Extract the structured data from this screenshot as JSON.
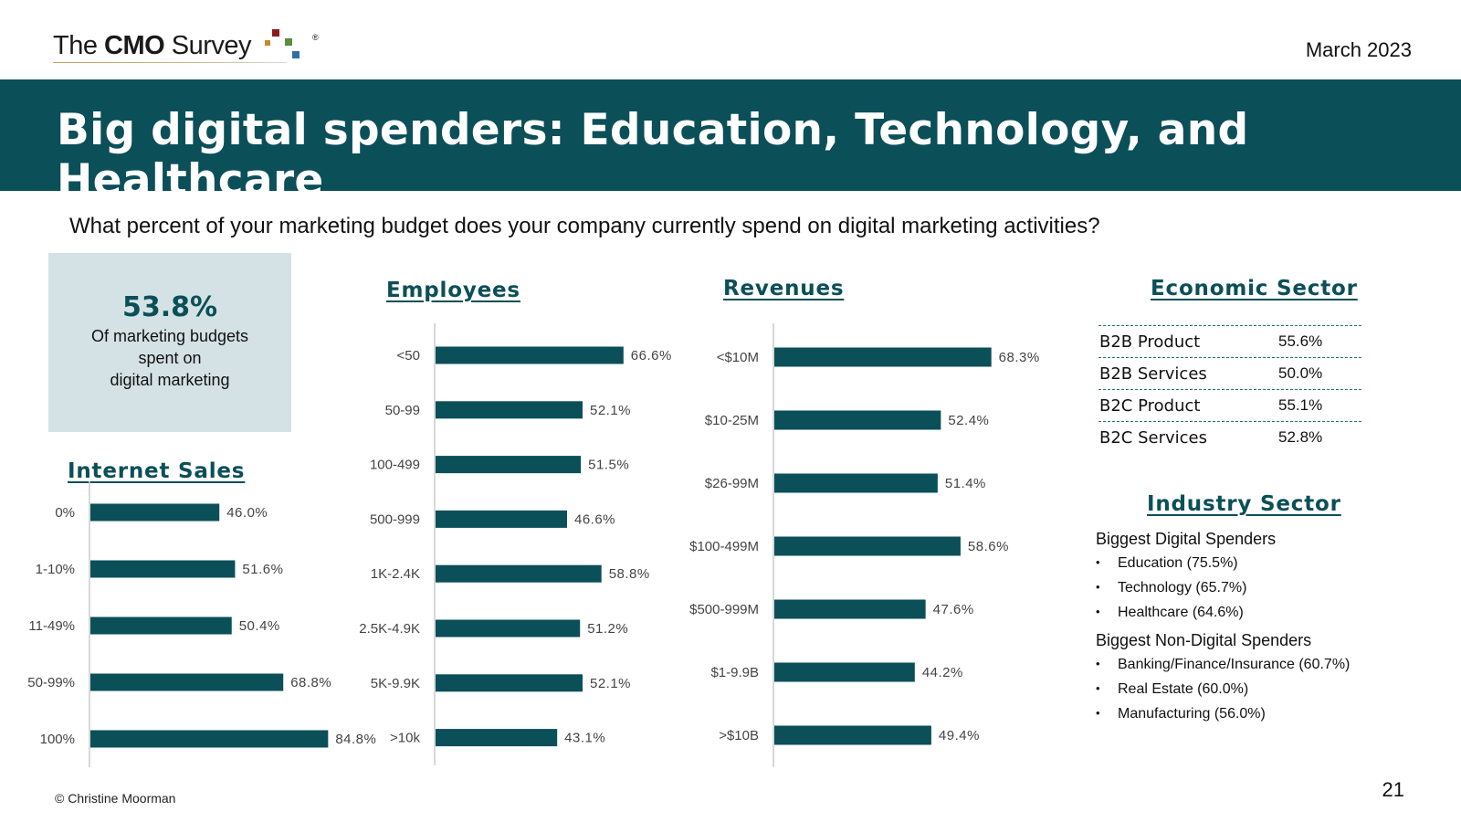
{
  "logo": {
    "text_light": "The ",
    "text_bold": "CMO",
    "text_light2": " Survey",
    "reg": "®"
  },
  "date": "March 2023",
  "title": "Big digital spenders: Education, Technology, and Healthcare",
  "question": "What percent of your marketing budget does your company currently spend on digital marketing activities?",
  "stat": {
    "value": "53.8%",
    "label_lines": [
      "Of marketing budgets",
      "spent on",
      "digital marketing"
    ]
  },
  "colors": {
    "bar": "#0b4f58",
    "banner": "#0b4f58",
    "stat_box": "#d5e2e5",
    "axis": "#cccccc",
    "logo_squares": [
      "#8b1a1a",
      "#c98a2a",
      "#5a8f3c",
      "#2f6fa8"
    ]
  },
  "chart_data": [
    {
      "id": "employees",
      "type": "bar",
      "orientation": "horizontal",
      "title": "Employees",
      "categories": [
        "<50",
        "50-99",
        "100-499",
        "500-999",
        "1K-2.4K",
        "2.5K-4.9K",
        "5K-9.9K",
        ">10k"
      ],
      "values": [
        66.6,
        52.1,
        51.5,
        46.6,
        58.8,
        51.2,
        52.1,
        43.1
      ],
      "labels": [
        "66.6%",
        "52.1%",
        "51.5%",
        "46.6%",
        "58.8%",
        "51.2%",
        "52.1%",
        "43.1%"
      ],
      "xlim": [
        0,
        100
      ],
      "grid": false
    },
    {
      "id": "revenues",
      "type": "bar",
      "orientation": "horizontal",
      "title": "Revenues",
      "categories": [
        "<$10M",
        "$10-25M",
        "$26-99M",
        "$100-499M",
        "$500-999M",
        "$1-9.9B",
        ">$10B"
      ],
      "values": [
        68.3,
        52.4,
        51.4,
        58.6,
        47.6,
        44.2,
        49.4
      ],
      "labels": [
        "68.3%",
        "52.4%",
        "51.4%",
        "58.6%",
        "47.6%",
        "44.2%",
        "49.4%"
      ],
      "xlim": [
        0,
        100
      ],
      "grid": false
    },
    {
      "id": "internet",
      "type": "bar",
      "orientation": "horizontal",
      "title": "Internet Sales",
      "categories": [
        "0%",
        "1-10%",
        "11-49%",
        "50-99%",
        "100%"
      ],
      "values": [
        46.0,
        51.6,
        50.4,
        68.8,
        84.8
      ],
      "labels": [
        "46.0%",
        "51.6%",
        "50.4%",
        "68.8%",
        "84.8%"
      ],
      "xlim": [
        0,
        100
      ],
      "grid": false
    },
    {
      "id": "economic",
      "type": "table",
      "title": "Economic Sector",
      "rows": [
        {
          "name": "B2B Product",
          "value": "55.6%"
        },
        {
          "name": "B2B Services",
          "value": "50.0%"
        },
        {
          "name": "B2C Product",
          "value": "55.1%"
        },
        {
          "name": "B2C Services",
          "value": "52.8%"
        }
      ]
    }
  ],
  "industry": {
    "title": "Industry Sector",
    "digital_title": "Biggest Digital Spenders",
    "digital": [
      "Education (75.5%)",
      "Technology (65.7%)",
      "Healthcare (64.6%)"
    ],
    "nondigital_title": "Biggest Non-Digital Spenders",
    "nondigital": [
      "Banking/Finance/Insurance (60.7%)",
      "Real Estate (60.0%)",
      "Manufacturing (56.0%)"
    ]
  },
  "footer": "© Christine Moorman",
  "page_number": "21"
}
